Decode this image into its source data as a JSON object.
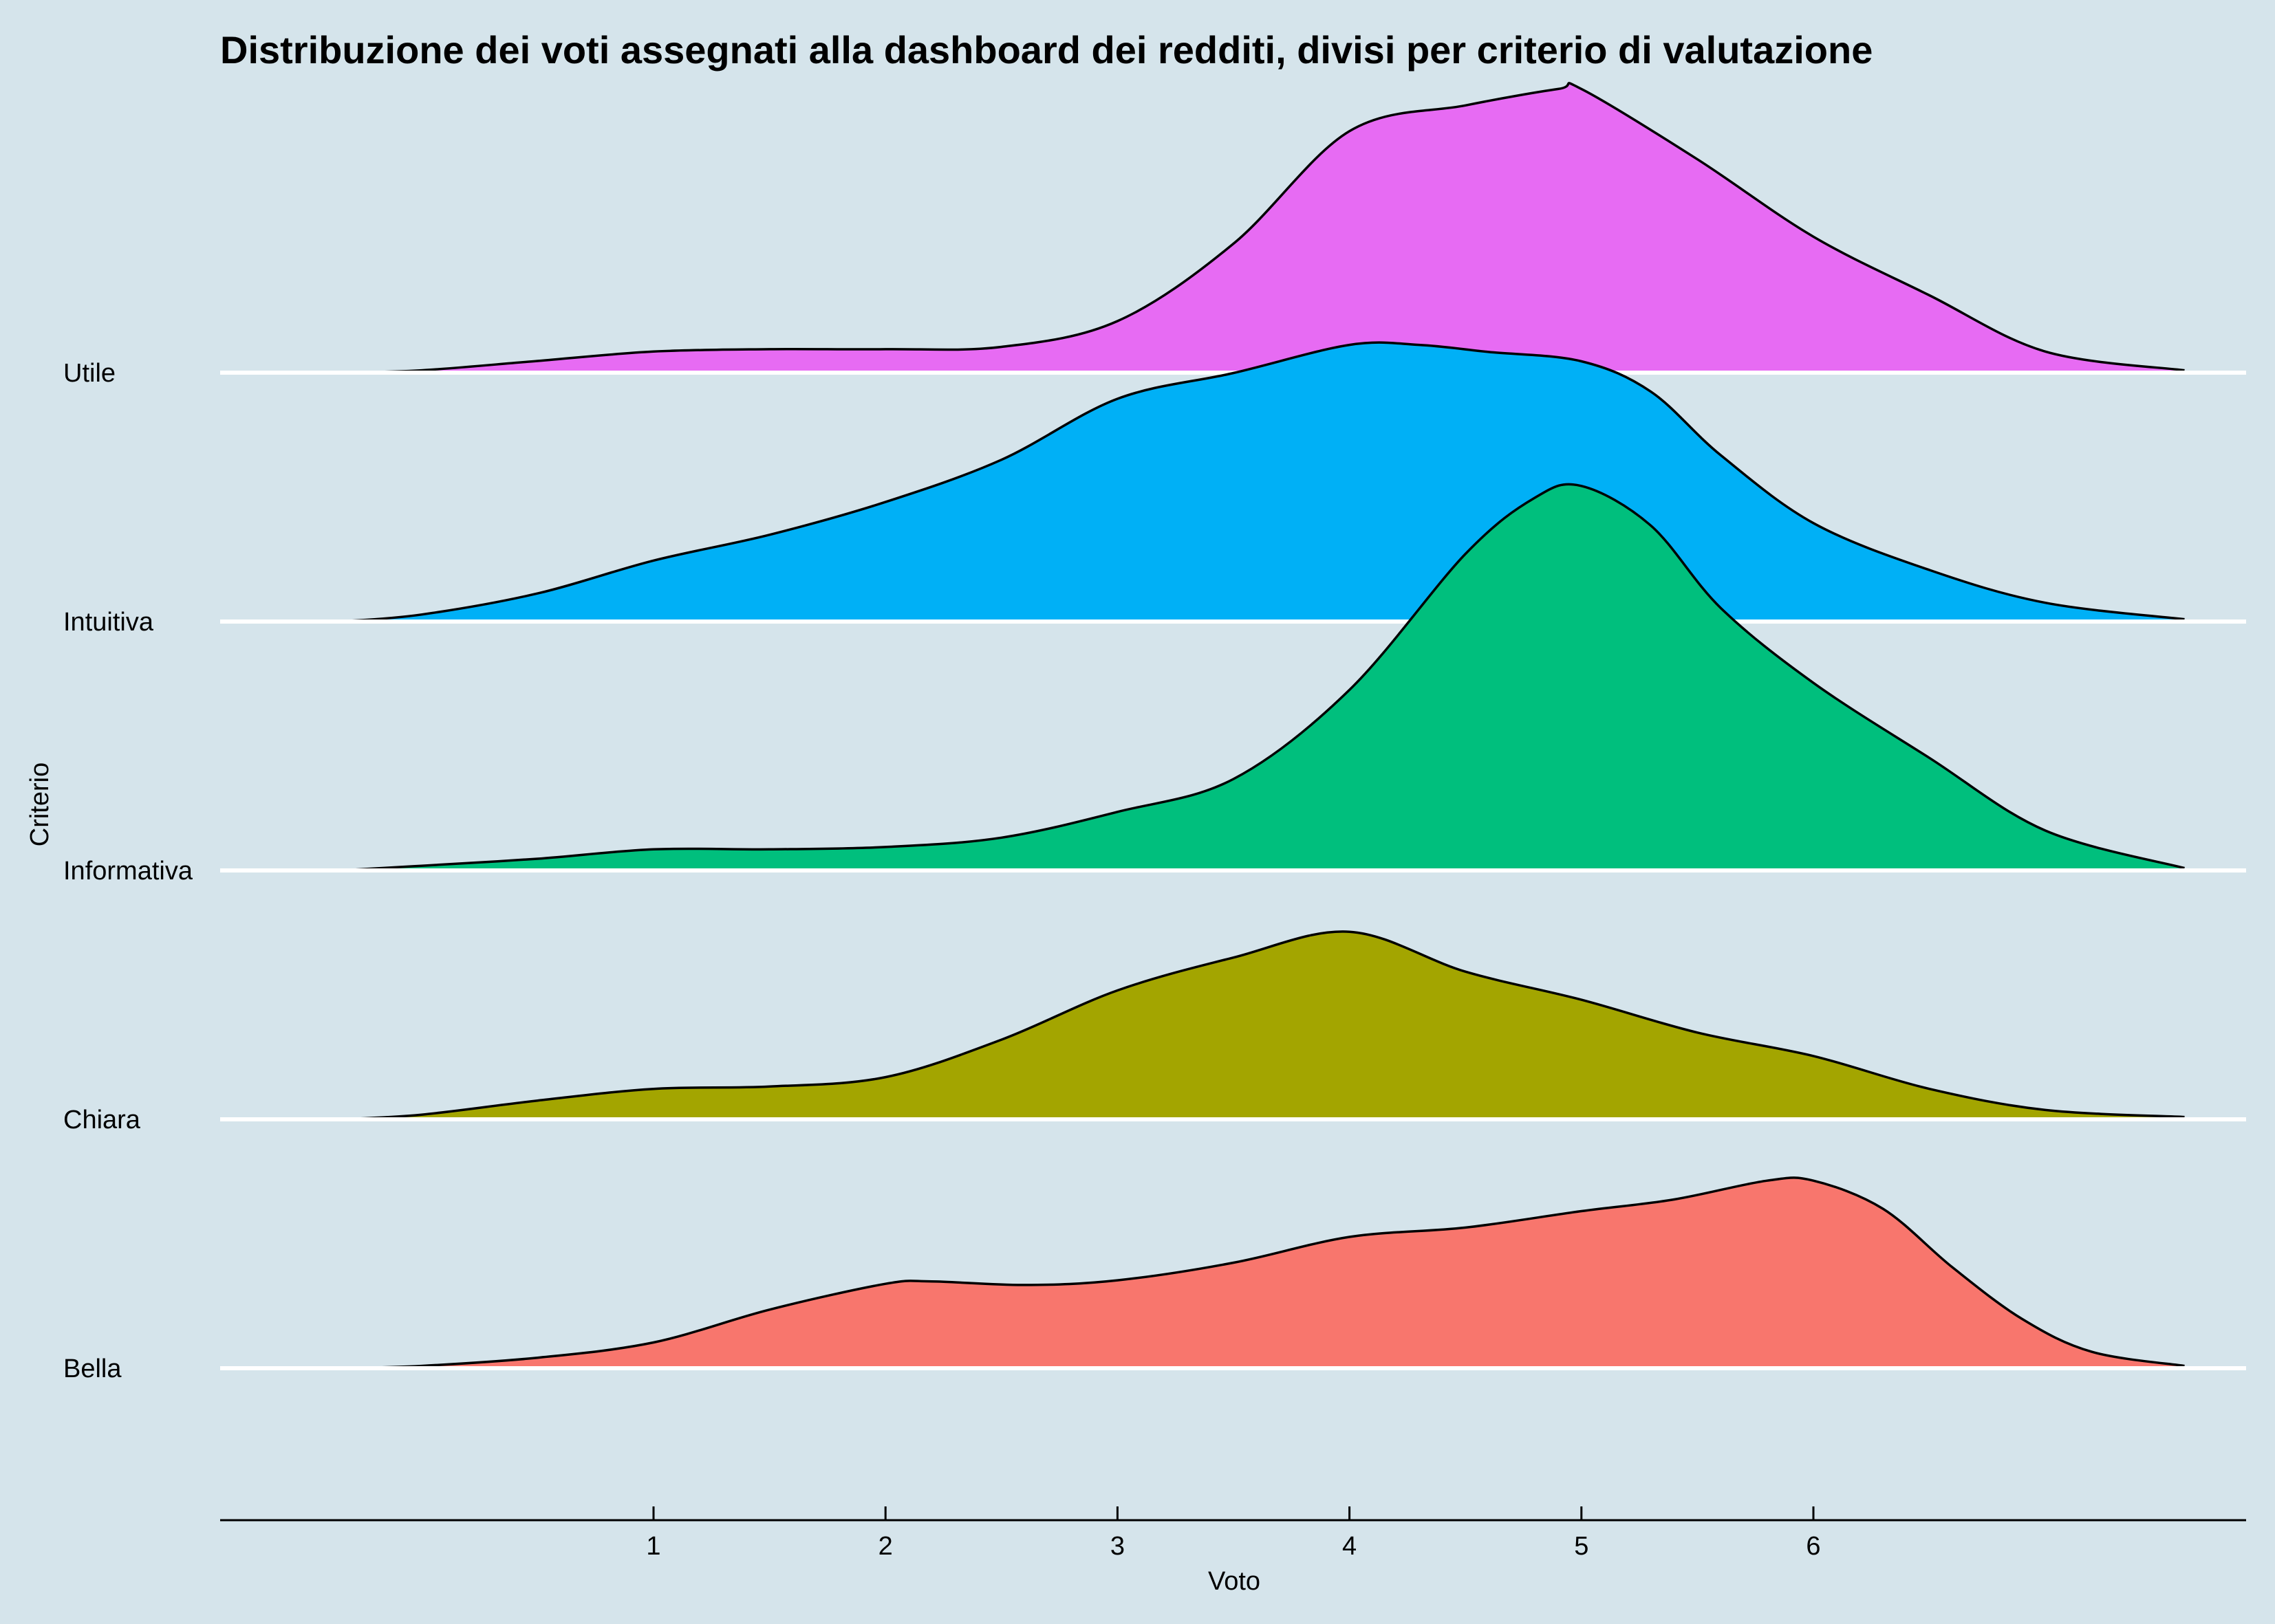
{
  "chart_data": {
    "type": "ridgeline",
    "title": "Distribuzione dei voti assegnati alla dashboard dei redditi, divisi per criterio di valutazione",
    "xlabel": "Voto",
    "ylabel": "Criterio",
    "x_ticks": [
      1,
      2,
      3,
      4,
      5,
      6
    ],
    "xlim": [
      -0.45,
      7.95
    ],
    "density_range": [
      -0.35,
      7.6
    ],
    "grid": false,
    "legend": "none",
    "series": [
      {
        "name": "Bella",
        "color": "#f8766d",
        "x": [
          -0.35,
          0.0,
          0.5,
          1.0,
          1.5,
          2.0,
          2.2,
          2.6,
          3.0,
          3.5,
          4.0,
          4.5,
          5.0,
          5.4,
          5.8,
          6.0,
          6.3,
          6.6,
          6.9,
          7.2,
          7.6
        ],
        "density": [
          0.0,
          0.01,
          0.045,
          0.11,
          0.25,
          0.36,
          0.37,
          0.355,
          0.375,
          0.45,
          0.56,
          0.6,
          0.67,
          0.72,
          0.8,
          0.8,
          0.68,
          0.43,
          0.21,
          0.07,
          0.01
        ]
      },
      {
        "name": "Chiara",
        "color": "#a3a500",
        "x": [
          -0.35,
          0.0,
          0.5,
          1.0,
          1.5,
          2.0,
          2.5,
          3.0,
          3.5,
          4.0,
          4.5,
          5.0,
          5.5,
          6.0,
          6.5,
          7.0,
          7.6
        ],
        "density": [
          0.0,
          0.02,
          0.08,
          0.13,
          0.14,
          0.18,
          0.34,
          0.55,
          0.69,
          0.8,
          0.63,
          0.51,
          0.37,
          0.27,
          0.13,
          0.04,
          0.01
        ]
      },
      {
        "name": "Informativa",
        "color": "#00bf7d",
        "x": [
          -0.35,
          0.0,
          0.5,
          1.0,
          1.5,
          2.0,
          2.5,
          3.0,
          3.5,
          4.0,
          4.5,
          4.8,
          5.0,
          5.3,
          5.6,
          6.0,
          6.5,
          7.0,
          7.6
        ],
        "density": [
          0.0,
          0.02,
          0.05,
          0.09,
          0.09,
          0.1,
          0.14,
          0.25,
          0.39,
          0.77,
          1.35,
          1.59,
          1.64,
          1.47,
          1.12,
          0.8,
          0.48,
          0.17,
          0.01
        ]
      },
      {
        "name": "Intuitiva",
        "color": "#00b0f6",
        "x": [
          -0.35,
          0.0,
          0.5,
          1.0,
          1.5,
          2.0,
          2.5,
          3.0,
          3.5,
          4.0,
          4.3,
          4.6,
          5.0,
          5.3,
          5.6,
          6.0,
          6.5,
          7.0,
          7.6
        ],
        "density": [
          0.0,
          0.03,
          0.12,
          0.26,
          0.37,
          0.51,
          0.69,
          0.95,
          1.06,
          1.18,
          1.18,
          1.15,
          1.11,
          0.98,
          0.71,
          0.42,
          0.22,
          0.08,
          0.01
        ]
      },
      {
        "name": "Utile",
        "color": "#e76bf3",
        "x": [
          -0.35,
          0.0,
          0.5,
          1.0,
          1.5,
          2.0,
          2.5,
          3.0,
          3.5,
          4.0,
          4.5,
          4.9,
          5.0,
          5.5,
          6.0,
          6.5,
          7.0,
          7.6
        ],
        "density": [
          0.0,
          0.01,
          0.05,
          0.09,
          0.1,
          0.1,
          0.11,
          0.22,
          0.55,
          1.03,
          1.14,
          1.21,
          1.21,
          0.91,
          0.58,
          0.33,
          0.09,
          0.01
        ]
      }
    ]
  }
}
